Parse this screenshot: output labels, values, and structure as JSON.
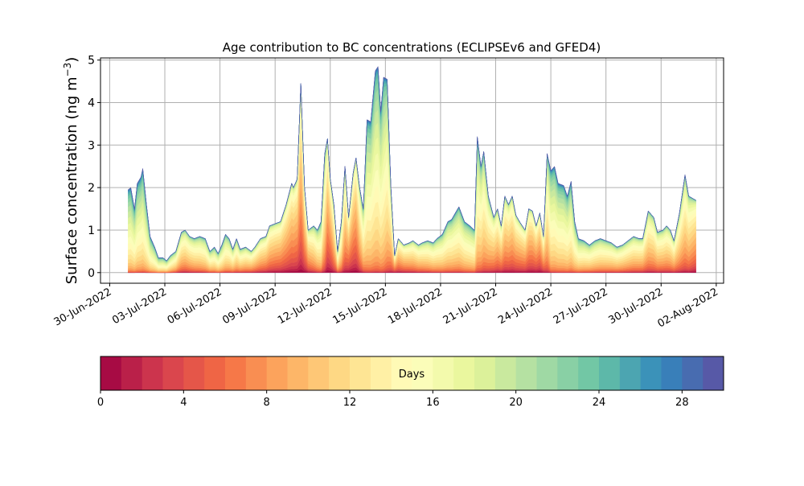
{
  "chart_data": {
    "type": "area",
    "stacked": true,
    "title": "Age contribution to BC concentrations (ECLIPSEv6 and GFED4)",
    "ylabel": "Surface concentration (ng m",
    "ylabel_unit_exp": "−3",
    "ylabel_close": ")",
    "ylim": [
      -0.25,
      5.05
    ],
    "yticks": [
      0,
      1,
      2,
      3,
      4,
      5
    ],
    "x_unit": "days since 30-Jun-2022 00:00",
    "xlim": [
      -0.5,
      33.4
    ],
    "xticks": [
      {
        "day": 0,
        "label": "30-Jun-2022"
      },
      {
        "day": 3,
        "label": "03-Jul-2022"
      },
      {
        "day": 6,
        "label": "06-Jul-2022"
      },
      {
        "day": 9,
        "label": "09-Jul-2022"
      },
      {
        "day": 12,
        "label": "12-Jul-2022"
      },
      {
        "day": 15,
        "label": "15-Jul-2022"
      },
      {
        "day": 18,
        "label": "18-Jul-2022"
      },
      {
        "day": 21,
        "label": "21-Jul-2022"
      },
      {
        "day": 24,
        "label": "24-Jul-2022"
      },
      {
        "day": 27,
        "label": "27-Jul-2022"
      },
      {
        "day": 30,
        "label": "30-Jul-2022"
      },
      {
        "day": 33,
        "label": "02-Aug-2022"
      }
    ],
    "grid": true,
    "total": {
      "x": [
        1.0,
        1.15,
        1.35,
        1.5,
        1.7,
        1.8,
        2.0,
        2.2,
        2.45,
        2.65,
        2.9,
        3.1,
        3.3,
        3.6,
        3.9,
        4.1,
        4.35,
        4.6,
        4.9,
        5.2,
        5.45,
        5.7,
        5.9,
        6.1,
        6.3,
        6.5,
        6.7,
        6.9,
        7.1,
        7.4,
        7.7,
        7.9,
        8.2,
        8.5,
        8.7,
        9.0,
        9.3,
        9.6,
        9.9,
        10.0,
        10.2,
        10.4,
        10.6,
        10.8,
        11.1,
        11.3,
        11.5,
        11.7,
        11.85,
        12.0,
        12.2,
        12.4,
        12.6,
        12.8,
        13.0,
        13.25,
        13.4,
        13.6,
        13.8,
        14.0,
        14.2,
        14.45,
        14.6,
        14.75,
        14.9,
        15.1,
        15.3,
        15.5,
        15.7,
        16.0,
        16.3,
        16.5,
        16.8,
        17.0,
        17.3,
        17.6,
        17.8,
        18.1,
        18.4,
        18.6,
        18.8,
        19.0,
        19.3,
        19.6,
        19.85,
        20.0,
        20.2,
        20.35,
        20.6,
        20.9,
        21.1,
        21.3,
        21.5,
        21.7,
        21.9,
        22.1,
        22.3,
        22.6,
        22.8,
        23.0,
        23.2,
        23.4,
        23.6,
        23.8,
        24.0,
        24.2,
        24.4,
        24.7,
        24.9,
        25.1,
        25.3,
        25.5,
        25.8,
        26.1,
        26.4,
        26.7,
        27.0,
        27.3,
        27.6,
        27.9,
        28.2,
        28.5,
        28.8,
        29.0,
        29.3,
        29.6,
        29.8,
        30.1,
        30.3,
        30.5,
        30.7,
        31.0,
        31.3,
        31.5,
        31.9
      ],
      "y": [
        1.95,
        2.0,
        1.5,
        2.1,
        2.25,
        2.45,
        1.6,
        0.85,
        0.6,
        0.35,
        0.35,
        0.28,
        0.4,
        0.5,
        0.95,
        1.0,
        0.85,
        0.8,
        0.85,
        0.8,
        0.5,
        0.6,
        0.45,
        0.65,
        0.9,
        0.8,
        0.55,
        0.8,
        0.55,
        0.6,
        0.5,
        0.6,
        0.8,
        0.85,
        1.1,
        1.15,
        1.2,
        1.6,
        2.1,
        2.0,
        2.2,
        4.45,
        2.0,
        1.0,
        1.1,
        1.0,
        1.2,
        2.8,
        3.15,
        2.2,
        1.6,
        0.5,
        1.2,
        2.5,
        1.3,
        2.35,
        2.7,
        2.0,
        1.5,
        3.6,
        3.55,
        4.75,
        4.85,
        3.8,
        4.6,
        4.55,
        2.0,
        0.4,
        0.8,
        0.65,
        0.7,
        0.75,
        0.65,
        0.7,
        0.75,
        0.7,
        0.8,
        0.9,
        1.2,
        1.25,
        1.4,
        1.55,
        1.2,
        1.1,
        1.0,
        3.2,
        2.5,
        2.85,
        1.8,
        1.3,
        1.5,
        1.1,
        1.8,
        1.6,
        1.8,
        1.35,
        1.2,
        1.0,
        1.5,
        1.45,
        1.1,
        1.4,
        0.85,
        2.8,
        2.4,
        2.5,
        2.1,
        2.05,
        1.8,
        2.15,
        1.2,
        0.8,
        0.75,
        0.65,
        0.75,
        0.8,
        0.75,
        0.7,
        0.6,
        0.65,
        0.75,
        0.85,
        0.8,
        0.8,
        1.45,
        1.3,
        0.95,
        1.0,
        1.1,
        1.0,
        0.75,
        1.4,
        2.3,
        1.8,
        1.7
      ]
    },
    "mean_age_days": {
      "x": [
        1,
        3,
        4,
        6,
        9,
        10.5,
        11.6,
        11.9,
        12.5,
        13,
        13.4,
        14,
        15,
        15.5,
        18,
        20,
        21,
        22.5,
        23.5,
        24,
        25,
        26,
        29,
        31.5,
        31.9
      ],
      "y": [
        17,
        16,
        12,
        15,
        10,
        9,
        15,
        8,
        14,
        9,
        9,
        16,
        16,
        10,
        14,
        15,
        11,
        10,
        9,
        16,
        16,
        14,
        12,
        12,
        10
      ]
    },
    "age_spread_days": 5,
    "colorbar": {
      "label": "Days",
      "range": [
        0,
        30
      ],
      "bins": 30,
      "ticks": [
        0,
        4,
        8,
        12,
        16,
        20,
        24,
        28
      ],
      "tick_labels": [
        "0",
        "4",
        "8",
        "12",
        "16",
        "20",
        "24",
        "28"
      ],
      "colormap_stops": [
        "#9e0142",
        "#d53e4f",
        "#f46d43",
        "#fdae61",
        "#fee08b",
        "#ffffbf",
        "#e6f598",
        "#abdda4",
        "#66c2a5",
        "#3288bd",
        "#5e4fa2"
      ]
    }
  }
}
